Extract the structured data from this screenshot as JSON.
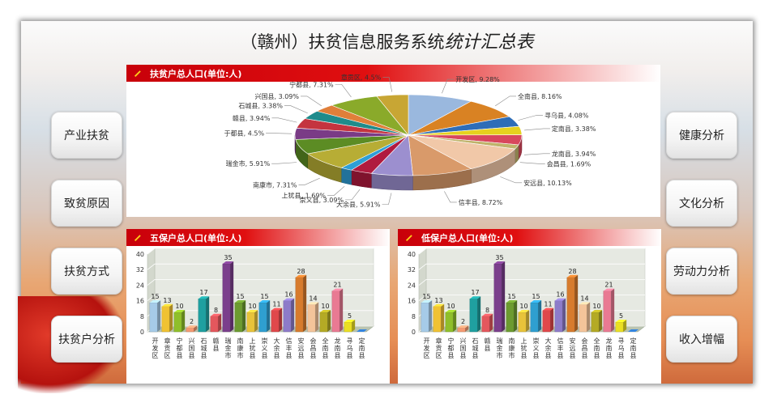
{
  "title": {
    "main": "（赣州）扶贫信息服务系统",
    "emphasis": "统计汇总表"
  },
  "nav_left": [
    "产业扶贫",
    "致贫原因",
    "扶贫方式",
    "扶贫户分析"
  ],
  "nav_right": [
    "健康分析",
    "文化分析",
    "劳动力分析",
    "收入增幅"
  ],
  "panels": {
    "pie_title": "扶贫户总人口(单位:人)",
    "bar1_title": "五保户总人口(单位:人)",
    "bar2_title": "低保户总人口(单位:人)"
  },
  "chart_data": [
    {
      "type": "pie",
      "title": "扶贫户总人口(单位:人)",
      "categories": [
        "开发区",
        "全南县",
        "寻乌县",
        "定南县",
        "龙南县",
        "会昌县",
        "安远县",
        "信丰县",
        "大余县",
        "崇义县",
        "上犹县",
        "南康市",
        "瑞金市",
        "于都县",
        "赣县",
        "石城县",
        "兴国县",
        "宁都县",
        "章贡区"
      ],
      "values": [
        9.28,
        8.16,
        4.08,
        3.38,
        3.94,
        1.69,
        10.13,
        8.72,
        5.91,
        3.09,
        1.69,
        7.31,
        5.91,
        4.5,
        3.94,
        3.38,
        3.09,
        7.31,
        4.5
      ],
      "unit": "%",
      "colors": [
        "#9ab8de",
        "#d98223",
        "#2e6db7",
        "#e6d11e",
        "#d8475d",
        "#c0b36b",
        "#f1c8a8",
        "#d99a6a",
        "#9c8fcf",
        "#b01b3f",
        "#2f9fd6",
        "#b7ad35",
        "#5c8c24",
        "#7a3b86",
        "#c4343f",
        "#1f8b8b",
        "#e07f3a",
        "#8aaa2a",
        "#c8a634"
      ],
      "labels": [
        "开发区, 9.28%",
        "全南县, 8.16%",
        "寻乌县, 4.08%",
        "定南县, 3.38%",
        "龙南县, 3.94%",
        "会昌县, 1.69%",
        "安远县, 10.13%",
        "信丰县, 8.72%",
        "大余县, 5.91%",
        "崇义县, 3.09%",
        "上犹县, 1.69%",
        "南康市, 7.31%",
        "瑞金市, 5.91%",
        "于都县, 4.5%",
        "赣县, 3.94%",
        "石城县, 3.38%",
        "兴国县, 3.09%",
        "宁都县, 7.31%",
        "章贡区, 4.5%"
      ]
    },
    {
      "type": "bar",
      "title": "五保户总人口(单位:人)",
      "categories": [
        "开发区",
        "章贡区",
        "宁都县",
        "兴国县",
        "石城县",
        "赣县",
        "瑞金市",
        "南康市",
        "上犹县",
        "崇义县",
        "大余县",
        "信丰县",
        "安远县",
        "会昌县",
        "全南县",
        "龙南县",
        "寻乌县",
        "定南县"
      ],
      "values": [
        15,
        13,
        10,
        2,
        17,
        8,
        35,
        15,
        10,
        15,
        11,
        16,
        28,
        14,
        10,
        21,
        5,
        0
      ],
      "value_labels": [
        "15",
        "13",
        "10",
        "2",
        "17",
        "8",
        "35",
        "15",
        "10",
        "15",
        "11",
        "16",
        "28",
        "14",
        "10",
        "21",
        "5",
        ""
      ],
      "ylim": [
        0,
        40
      ],
      "yticks": [
        "0",
        "8",
        "16",
        "24",
        "32",
        "40"
      ]
    },
    {
      "type": "bar",
      "title": "低保户总人口(单位:人)",
      "categories": [
        "开发区",
        "章贡区",
        "宁都县",
        "兴国县",
        "石城县",
        "赣县",
        "瑞金市",
        "南康市",
        "上犹县",
        "崇义县",
        "大余县",
        "信丰县",
        "安远县",
        "会昌县",
        "全南县",
        "龙南县",
        "寻乌县",
        "定南县"
      ],
      "values": [
        15,
        13,
        10,
        2,
        17,
        8,
        35,
        15,
        10,
        15,
        11,
        16,
        28,
        14,
        10,
        21,
        5,
        0
      ],
      "value_labels": [
        "15",
        "13",
        "10",
        "2",
        "17",
        "8",
        "35",
        "15",
        "10",
        "15",
        "11",
        "16",
        "28",
        "14",
        "10",
        "21",
        "5",
        ""
      ],
      "ylim": [
        0,
        40
      ],
      "yticks": [
        "0",
        "8",
        "16",
        "24",
        "32",
        "40"
      ]
    }
  ],
  "bar_colors": [
    "#a6cbe8",
    "#f0c233",
    "#8fbf2a",
    "#f59a72",
    "#1fa0a0",
    "#e4575d",
    "#7b3f8c",
    "#6c9b30",
    "#e8c33a",
    "#2f9fd0",
    "#e0484b",
    "#8d7bc9",
    "#d77b2d",
    "#f4c49a",
    "#b4aa25",
    "#e97a93",
    "#eadf23",
    "#2b6fba"
  ]
}
